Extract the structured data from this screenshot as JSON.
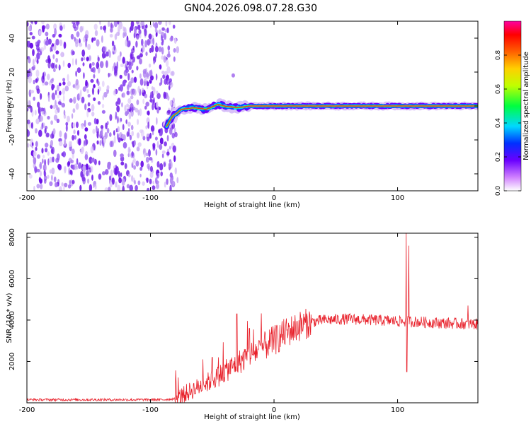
{
  "title": "GN04.2026.098.07.28.G30",
  "colors": {
    "noise": "#7a2ee8",
    "trace": "#e8202a",
    "axis": "#000000"
  },
  "chart_data": [
    {
      "type": "heatmap",
      "name": "spectrogram",
      "xlabel": "Height of straight line (km)",
      "ylabel": "Frequency (Hz)",
      "xlim": [
        -200,
        165
      ],
      "ylim": [
        -50,
        50
      ],
      "xticks": [
        "-200",
        "-100",
        "0",
        "100"
      ],
      "xtick_values": [
        -200,
        -100,
        0,
        100
      ],
      "yticks": [
        "40",
        "20",
        "0",
        "-20",
        "-40"
      ],
      "ytick_values": [
        40,
        20,
        0,
        -20,
        -40
      ],
      "noise_region_km": [
        -200,
        -78
      ],
      "ridge": [
        {
          "x": -87,
          "y": -12
        },
        {
          "x": -82,
          "y": -6
        },
        {
          "x": -75,
          "y": -2
        },
        {
          "x": -65,
          "y": -1
        },
        {
          "x": -55,
          "y": -2
        },
        {
          "x": -45,
          "y": 1
        },
        {
          "x": -40,
          "y": 0
        },
        {
          "x": -30,
          "y": -1
        },
        {
          "x": -20,
          "y": 0
        },
        {
          "x": 0,
          "y": 0
        },
        {
          "x": 40,
          "y": 0
        },
        {
          "x": 80,
          "y": 0
        },
        {
          "x": 100,
          "y": 0
        },
        {
          "x": 120,
          "y": 0
        },
        {
          "x": 165,
          "y": 0
        }
      ],
      "outliers": [
        {
          "x": -33,
          "y": 18
        }
      ],
      "colorbar": {
        "label": "Normalized spectral amplitude",
        "ticks": [
          "0.8",
          "0.6",
          "0.4",
          "0.2",
          "0.0"
        ],
        "tick_values": [
          0.8,
          0.6,
          0.4,
          0.2,
          0.0
        ],
        "range": [
          0,
          1
        ]
      }
    },
    {
      "type": "line",
      "name": "snr",
      "xlabel": "Height of straight line (km)",
      "ylabel": "SNR (10 * v/v)",
      "xlim": [
        -200,
        165
      ],
      "ylim": [
        0,
        8200
      ],
      "xticks": [
        "-200",
        "-100",
        "0",
        "100"
      ],
      "xtick_values": [
        -200,
        -100,
        0,
        100
      ],
      "yticks": [
        "8000",
        "6000",
        "4000",
        "2000"
      ],
      "ytick_values": [
        8000,
        6000,
        4000,
        2000
      ],
      "trend": [
        {
          "x": -200,
          "y": 150
        },
        {
          "x": -90,
          "y": 150
        },
        {
          "x": -78,
          "y": 200
        },
        {
          "x": -70,
          "y": 500
        },
        {
          "x": -60,
          "y": 800
        },
        {
          "x": -50,
          "y": 1100
        },
        {
          "x": -40,
          "y": 1500
        },
        {
          "x": -30,
          "y": 1900
        },
        {
          "x": -20,
          "y": 2300
        },
        {
          "x": -10,
          "y": 2650
        },
        {
          "x": 0,
          "y": 3000
        },
        {
          "x": 10,
          "y": 3400
        },
        {
          "x": 20,
          "y": 3700
        },
        {
          "x": 30,
          "y": 3900
        },
        {
          "x": 40,
          "y": 4000
        },
        {
          "x": 60,
          "y": 4050
        },
        {
          "x": 80,
          "y": 4000
        },
        {
          "x": 100,
          "y": 3950
        },
        {
          "x": 120,
          "y": 3900
        },
        {
          "x": 140,
          "y": 3850
        },
        {
          "x": 165,
          "y": 3800
        }
      ],
      "spikes": [
        {
          "x": -30,
          "y": 4300
        },
        {
          "x": -20,
          "y": 3600
        },
        {
          "x": -50,
          "y": 2200
        },
        {
          "x": 107,
          "y": 8200
        },
        {
          "x": 107.5,
          "y": 1500
        },
        {
          "x": 109,
          "y": 7600
        },
        {
          "x": 157,
          "y": 4700
        }
      ]
    }
  ]
}
